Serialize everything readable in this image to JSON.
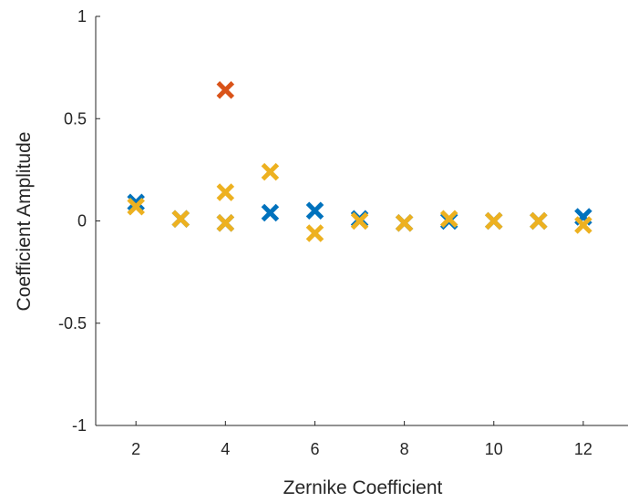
{
  "chart_data": {
    "type": "scatter",
    "title": "",
    "xlabel": "Zernike Coefficient",
    "ylabel": "Coefficient Amplitude",
    "xlim": [
      1.1,
      13
    ],
    "ylim": [
      -1,
      1
    ],
    "xticks": [
      2,
      4,
      6,
      8,
      10,
      12
    ],
    "yticks": [
      -1,
      -0.5,
      0,
      0.5,
      1
    ],
    "xtick_labels": [
      "2",
      "4",
      "6",
      "8",
      "10",
      "12"
    ],
    "ytick_labels": [
      "-1",
      "-0.5",
      "0",
      "0.5",
      "1"
    ],
    "grid": false,
    "marker": "x",
    "series": [
      {
        "color": "#0072BD",
        "x": [
          2,
          3,
          4,
          5,
          6,
          7,
          8,
          9,
          10,
          11,
          12
        ],
        "y": [
          0.09,
          0.01,
          -0.01,
          0.04,
          0.05,
          0.01,
          -0.01,
          0.0,
          0.0,
          0.0,
          0.02
        ]
      },
      {
        "color": "#D95319",
        "x": [
          4
        ],
        "y": [
          0.64
        ]
      },
      {
        "color": "#EDB120",
        "x": [
          2,
          3,
          4,
          4,
          5,
          6,
          7,
          8,
          9,
          10,
          11,
          12
        ],
        "y": [
          0.07,
          0.01,
          0.14,
          -0.01,
          0.24,
          -0.06,
          0.0,
          -0.01,
          0.01,
          0.0,
          0.0,
          -0.02
        ]
      }
    ]
  }
}
